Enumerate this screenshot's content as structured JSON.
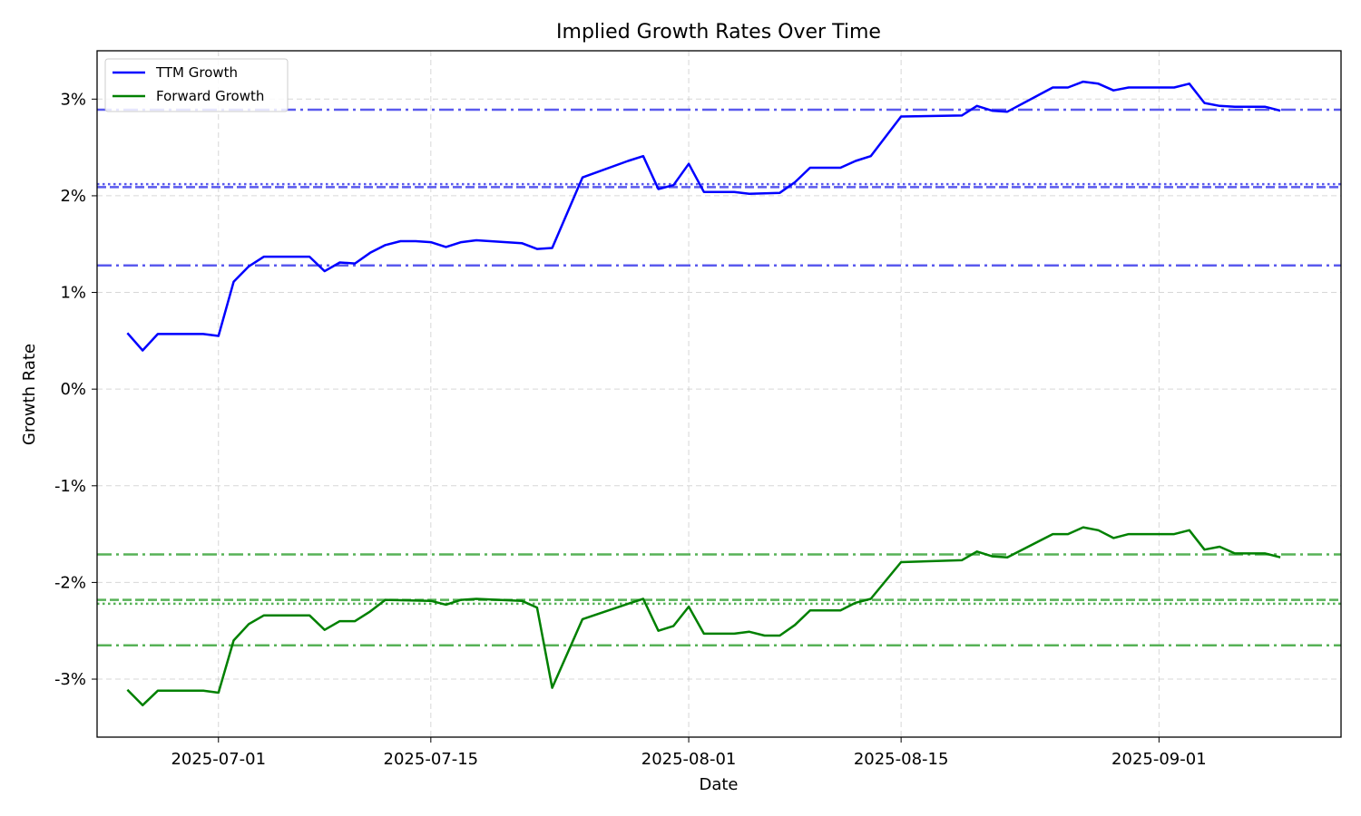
{
  "chart_data": {
    "type": "line",
    "title": "Implied Growth Rates Over Time",
    "xlabel": "Date",
    "ylabel": "Growth Rate",
    "xlim": [
      "2025-06-23",
      "2025-09-13"
    ],
    "ylim": [
      -3.6,
      3.5
    ],
    "x_ticks": [
      "2025-07-01",
      "2025-07-15",
      "2025-08-01",
      "2025-08-15",
      "2025-09-01"
    ],
    "y_ticks": [
      -3,
      -2,
      -1,
      0,
      1,
      2,
      3
    ],
    "y_tick_labels": [
      "-3%",
      "-2%",
      "-1%",
      "0%",
      "1%",
      "2%",
      "3%"
    ],
    "grid": true,
    "legend_position": "top-left",
    "series": [
      {
        "name": "TTM Growth",
        "color": "#0000ff",
        "points": [
          [
            "2025-06-25",
            0.58
          ],
          [
            "2025-06-26",
            0.4
          ],
          [
            "2025-06-27",
            0.57
          ],
          [
            "2025-06-30",
            0.57
          ],
          [
            "2025-07-01",
            0.55
          ],
          [
            "2025-07-02",
            1.11
          ],
          [
            "2025-07-03",
            1.27
          ],
          [
            "2025-07-04",
            1.37
          ],
          [
            "2025-07-07",
            1.37
          ],
          [
            "2025-07-08",
            1.22
          ],
          [
            "2025-07-09",
            1.31
          ],
          [
            "2025-07-10",
            1.3
          ],
          [
            "2025-07-11",
            1.41
          ],
          [
            "2025-07-12",
            1.49
          ],
          [
            "2025-07-13",
            1.53
          ],
          [
            "2025-07-14",
            1.53
          ],
          [
            "2025-07-15",
            1.52
          ],
          [
            "2025-07-16",
            1.47
          ],
          [
            "2025-07-17",
            1.52
          ],
          [
            "2025-07-18",
            1.54
          ],
          [
            "2025-07-21",
            1.51
          ],
          [
            "2025-07-22",
            1.45
          ],
          [
            "2025-07-23",
            1.46
          ],
          [
            "2025-07-25",
            2.19
          ],
          [
            "2025-07-28",
            2.36
          ],
          [
            "2025-07-29",
            2.41
          ],
          [
            "2025-07-30",
            2.07
          ],
          [
            "2025-07-31",
            2.11
          ],
          [
            "2025-08-01",
            2.33
          ],
          [
            "2025-08-02",
            2.04
          ],
          [
            "2025-08-04",
            2.04
          ],
          [
            "2025-08-05",
            2.02
          ],
          [
            "2025-08-07",
            2.03
          ],
          [
            "2025-08-08",
            2.14
          ],
          [
            "2025-08-09",
            2.29
          ],
          [
            "2025-08-11",
            2.29
          ],
          [
            "2025-08-12",
            2.36
          ],
          [
            "2025-08-13",
            2.41
          ],
          [
            "2025-08-15",
            2.82
          ],
          [
            "2025-08-19",
            2.83
          ],
          [
            "2025-08-20",
            2.93
          ],
          [
            "2025-08-21",
            2.88
          ],
          [
            "2025-08-22",
            2.87
          ],
          [
            "2025-08-25",
            3.12
          ],
          [
            "2025-08-26",
            3.12
          ],
          [
            "2025-08-27",
            3.18
          ],
          [
            "2025-08-28",
            3.16
          ],
          [
            "2025-08-29",
            3.09
          ],
          [
            "2025-08-30",
            3.12
          ],
          [
            "2025-09-02",
            3.12
          ],
          [
            "2025-09-03",
            3.16
          ],
          [
            "2025-09-04",
            2.96
          ],
          [
            "2025-09-05",
            2.93
          ],
          [
            "2025-09-06",
            2.92
          ],
          [
            "2025-09-08",
            2.92
          ],
          [
            "2025-09-09",
            2.88
          ]
        ]
      },
      {
        "name": "Forward Growth",
        "color": "#008000",
        "points": [
          [
            "2025-06-25",
            -3.11
          ],
          [
            "2025-06-26",
            -3.27
          ],
          [
            "2025-06-27",
            -3.12
          ],
          [
            "2025-06-30",
            -3.12
          ],
          [
            "2025-07-01",
            -3.14
          ],
          [
            "2025-07-02",
            -2.6
          ],
          [
            "2025-07-03",
            -2.43
          ],
          [
            "2025-07-04",
            -2.34
          ],
          [
            "2025-07-07",
            -2.34
          ],
          [
            "2025-07-08",
            -2.49
          ],
          [
            "2025-07-09",
            -2.4
          ],
          [
            "2025-07-10",
            -2.4
          ],
          [
            "2025-07-11",
            -2.3
          ],
          [
            "2025-07-12",
            -2.18
          ],
          [
            "2025-07-15",
            -2.19
          ],
          [
            "2025-07-16",
            -2.23
          ],
          [
            "2025-07-17",
            -2.18
          ],
          [
            "2025-07-18",
            -2.17
          ],
          [
            "2025-07-21",
            -2.19
          ],
          [
            "2025-07-22",
            -2.26
          ],
          [
            "2025-07-23",
            -3.09
          ],
          [
            "2025-07-25",
            -2.38
          ],
          [
            "2025-07-28",
            -2.22
          ],
          [
            "2025-07-29",
            -2.17
          ],
          [
            "2025-07-30",
            -2.5
          ],
          [
            "2025-07-31",
            -2.45
          ],
          [
            "2025-08-01",
            -2.25
          ],
          [
            "2025-08-02",
            -2.53
          ],
          [
            "2025-08-04",
            -2.53
          ],
          [
            "2025-08-05",
            -2.51
          ],
          [
            "2025-08-06",
            -2.55
          ],
          [
            "2025-08-07",
            -2.55
          ],
          [
            "2025-08-08",
            -2.44
          ],
          [
            "2025-08-09",
            -2.29
          ],
          [
            "2025-08-11",
            -2.29
          ],
          [
            "2025-08-12",
            -2.21
          ],
          [
            "2025-08-13",
            -2.17
          ],
          [
            "2025-08-15",
            -1.79
          ],
          [
            "2025-08-19",
            -1.77
          ],
          [
            "2025-08-20",
            -1.68
          ],
          [
            "2025-08-21",
            -1.73
          ],
          [
            "2025-08-22",
            -1.74
          ],
          [
            "2025-08-25",
            -1.5
          ],
          [
            "2025-08-26",
            -1.5
          ],
          [
            "2025-08-27",
            -1.43
          ],
          [
            "2025-08-28",
            -1.46
          ],
          [
            "2025-08-29",
            -1.54
          ],
          [
            "2025-08-30",
            -1.5
          ],
          [
            "2025-09-02",
            -1.5
          ],
          [
            "2025-09-03",
            -1.46
          ],
          [
            "2025-09-04",
            -1.66
          ],
          [
            "2025-09-05",
            -1.63
          ],
          [
            "2025-09-06",
            -1.7
          ],
          [
            "2025-09-08",
            -1.7
          ],
          [
            "2025-09-09",
            -1.74
          ]
        ]
      }
    ],
    "reference_lines": [
      {
        "series": "TTM Growth",
        "value": 2.89,
        "style": "dashdot",
        "color": "#5a5aee"
      },
      {
        "series": "TTM Growth",
        "value": 2.12,
        "style": "dotted",
        "color": "#5a5aee"
      },
      {
        "series": "TTM Growth",
        "value": 2.09,
        "style": "dashed",
        "color": "#5a5aee"
      },
      {
        "series": "TTM Growth",
        "value": 1.28,
        "style": "dashdot",
        "color": "#5a5aee"
      },
      {
        "series": "Forward Growth",
        "value": -1.71,
        "style": "dashdot",
        "color": "#57b257"
      },
      {
        "series": "Forward Growth",
        "value": -2.18,
        "style": "dashed",
        "color": "#57b257"
      },
      {
        "series": "Forward Growth",
        "value": -2.22,
        "style": "dotted",
        "color": "#57b257"
      },
      {
        "series": "Forward Growth",
        "value": -2.65,
        "style": "dashdot",
        "color": "#57b257"
      }
    ]
  }
}
